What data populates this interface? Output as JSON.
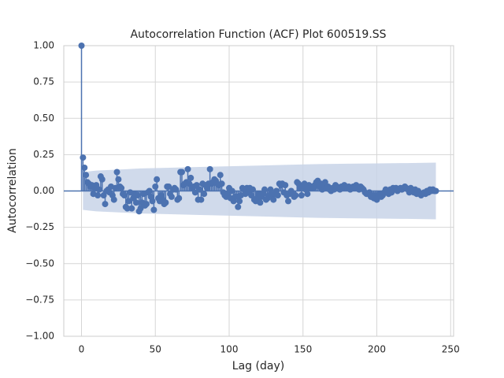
{
  "chart_data": {
    "type": "acf",
    "title": "Autocorrelation Function (ACF) Plot 600519.SS",
    "xlabel": "Lag (day)",
    "ylabel": "Autocorrelation",
    "color": "#4c72b0",
    "band_color": "#c8d3e8",
    "grid": true,
    "xlim": [
      -12,
      252
    ],
    "ylim": [
      -1,
      1
    ],
    "xticks": [
      0,
      50,
      100,
      150,
      200,
      250
    ],
    "yticks": [
      {
        "value": 1,
        "label": "1.00"
      },
      {
        "value": 0.75,
        "label": "0.75"
      },
      {
        "value": 0.5,
        "label": "0.50"
      },
      {
        "value": 0.25,
        "label": "0.25"
      },
      {
        "value": 0,
        "label": "0.00"
      },
      {
        "value": -0.25,
        "label": "−0.25"
      },
      {
        "value": -0.5,
        "label": "−0.50"
      },
      {
        "value": -0.75,
        "label": "−0.75"
      },
      {
        "value": -1,
        "label": "−1.00"
      }
    ],
    "x": [
      0,
      1,
      2,
      3,
      4,
      5,
      6,
      7,
      8,
      9,
      10,
      11,
      12,
      13,
      14,
      15,
      16,
      17,
      18,
      19,
      20,
      21,
      22,
      23,
      24,
      25,
      26,
      27,
      28,
      29,
      30,
      31,
      32,
      33,
      34,
      35,
      36,
      37,
      38,
      39,
      40,
      41,
      42,
      43,
      44,
      45,
      46,
      47,
      48,
      49,
      50,
      51,
      52,
      53,
      54,
      55,
      56,
      57,
      58,
      59,
      60,
      61,
      62,
      63,
      64,
      65,
      66,
      67,
      68,
      69,
      70,
      71,
      72,
      73,
      74,
      75,
      76,
      77,
      78,
      79,
      80,
      81,
      82,
      83,
      84,
      85,
      86,
      87,
      88,
      89,
      90,
      91,
      92,
      93,
      94,
      95,
      96,
      97,
      98,
      99,
      100,
      101,
      102,
      103,
      104,
      105,
      106,
      107,
      108,
      109,
      110,
      111,
      112,
      113,
      114,
      115,
      116,
      117,
      118,
      119,
      120,
      121,
      122,
      123,
      124,
      125,
      126,
      127,
      128,
      129,
      130,
      131,
      132,
      133,
      134,
      135,
      136,
      137,
      138,
      139,
      140,
      141,
      142,
      143,
      144,
      145,
      146,
      147,
      148,
      149,
      150,
      151,
      152,
      153,
      154,
      155,
      156,
      157,
      158,
      159,
      160,
      161,
      162,
      163,
      164,
      165,
      166,
      167,
      168,
      169,
      170,
      171,
      172,
      173,
      174,
      175,
      176,
      177,
      178,
      179,
      180,
      181,
      182,
      183,
      184,
      185,
      186,
      187,
      188,
      189,
      190,
      191,
      192,
      193,
      194,
      195,
      196,
      197,
      198,
      199,
      200,
      201,
      202,
      203,
      204,
      205,
      206,
      207,
      208,
      209,
      210,
      211,
      212,
      213,
      214,
      215,
      216,
      217,
      218,
      219,
      220,
      221,
      222,
      223,
      224,
      225,
      226,
      227,
      228,
      229,
      230,
      231,
      232,
      233,
      234,
      235,
      236,
      237,
      238,
      239,
      240
    ],
    "values": [
      1.0,
      0.23,
      0.16,
      0.11,
      0.06,
      0.05,
      0.03,
      0.04,
      -0.02,
      0.02,
      0.04,
      -0.03,
      0.01,
      0.1,
      0.08,
      -0.03,
      -0.09,
      0.0,
      0.01,
      -0.01,
      0.03,
      -0.03,
      -0.06,
      0.02,
      0.13,
      0.08,
      0.03,
      0.02,
      -0.02,
      -0.03,
      -0.11,
      -0.12,
      -0.07,
      -0.01,
      -0.12,
      -0.05,
      -0.02,
      -0.08,
      -0.03,
      -0.14,
      -0.12,
      -0.08,
      -0.02,
      -0.1,
      -0.09,
      -0.01,
      0.0,
      -0.04,
      -0.07,
      -0.13,
      0.03,
      0.08,
      -0.05,
      -0.07,
      -0.03,
      -0.06,
      -0.09,
      -0.08,
      0.03,
      0.03,
      -0.02,
      -0.04,
      0.01,
      0.02,
      0.01,
      -0.06,
      -0.05,
      0.13,
      0.13,
      0.04,
      0.05,
      0.06,
      0.15,
      0.05,
      0.09,
      0.02,
      0.03,
      -0.01,
      0.04,
      -0.06,
      0.01,
      -0.06,
      0.05,
      -0.02,
      0.04,
      0.02,
      0.05,
      0.15,
      0.05,
      0.06,
      0.08,
      0.07,
      0.05,
      0.04,
      0.11,
      0.05,
      -0.01,
      -0.03,
      -0.04,
      -0.02,
      0.02,
      -0.05,
      0.0,
      -0.07,
      -0.04,
      -0.04,
      -0.11,
      -0.07,
      -0.03,
      0.02,
      0.01,
      -0.02,
      0.02,
      -0.01,
      0.02,
      -0.03,
      0.01,
      -0.06,
      -0.07,
      -0.05,
      -0.02,
      -0.08,
      -0.04,
      -0.02,
      0.01,
      -0.06,
      -0.05,
      -0.03,
      0.01,
      -0.03,
      -0.06,
      -0.02,
      0.0,
      -0.03,
      0.05,
      0.04,
      0.05,
      -0.01,
      0.04,
      -0.03,
      -0.07,
      -0.02,
      0.0,
      -0.02,
      -0.04,
      -0.03,
      0.06,
      0.05,
      0.02,
      -0.03,
      0.03,
      0.05,
      0.01,
      -0.02,
      0.04,
      0.02,
      0.03,
      0.02,
      0.04,
      0.06,
      0.07,
      0.03,
      0.05,
      0.01,
      0.04,
      0.06,
      0.02,
      0.03,
      0.01,
      0.0,
      0.02,
      0.01,
      0.04,
      0.03,
      0.02,
      0.01,
      0.03,
      0.02,
      0.04,
      0.03,
      0.02,
      0.03,
      0.01,
      0.02,
      0.03,
      0.02,
      0.04,
      0.02,
      0.01,
      0.03,
      0.02,
      0.01,
      -0.01,
      -0.02,
      -0.02,
      -0.01,
      -0.04,
      -0.03,
      -0.05,
      -0.03,
      -0.06,
      -0.04,
      -0.02,
      -0.04,
      -0.03,
      -0.01,
      0.01,
      0.0,
      -0.02,
      0.01,
      -0.01,
      0.02,
      0.01,
      0.02,
      0.0,
      0.01,
      0.02,
      0.01,
      0.02,
      0.03,
      0.02,
      0.01,
      -0.01,
      0.02,
      0.0,
      -0.01,
      0.01,
      -0.02,
      0.0,
      -0.02,
      -0.03,
      -0.02,
      -0.01,
      -0.02,
      0.0,
      -0.01,
      0.01,
      0.0,
      0.01,
      0.0,
      0.0
    ],
    "band": {
      "x": [
        1,
        5,
        10,
        20,
        30,
        40,
        60,
        80,
        100,
        120,
        140,
        160,
        180,
        200,
        220,
        240
      ],
      "upper": [
        0.13,
        0.135,
        0.14,
        0.145,
        0.15,
        0.155,
        0.16,
        0.165,
        0.17,
        0.175,
        0.18,
        0.185,
        0.188,
        0.19,
        0.192,
        0.195
      ],
      "lower": [
        -0.13,
        -0.135,
        -0.14,
        -0.145,
        -0.15,
        -0.155,
        -0.16,
        -0.165,
        -0.17,
        -0.175,
        -0.18,
        -0.185,
        -0.188,
        -0.19,
        -0.192,
        -0.195
      ]
    }
  }
}
